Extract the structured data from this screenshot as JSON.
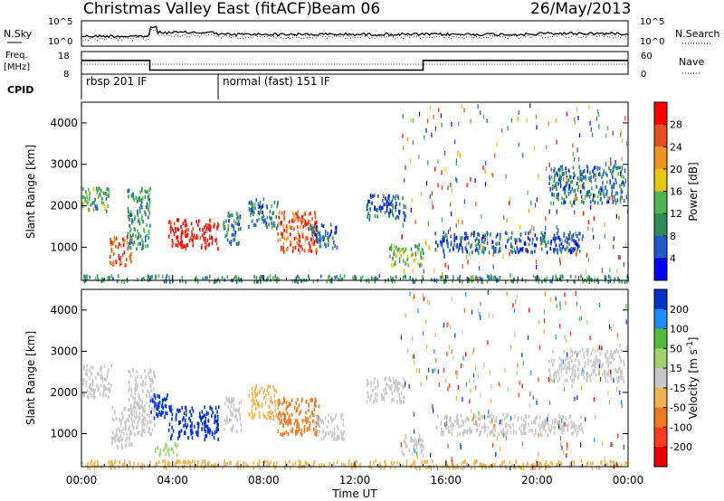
{
  "header": {
    "title": "Christmas Valley East (fitACF)",
    "beam": "Beam 06",
    "date": "26/May/2013"
  },
  "status_panels": {
    "nsky_label": "N.Sky",
    "nsky_ticks": [
      "10^5",
      "10^0"
    ],
    "nsearch_label": "N.Search",
    "nsearch_ticks": [
      "10^5",
      "10^0"
    ],
    "freq_label": "Freq.",
    "freq_unit": "[MHz]",
    "freq_ticks": [
      "18",
      "8"
    ],
    "nave_label": "Nave",
    "nave_ticks": [
      "60",
      "0"
    ],
    "cpid_label": "CPID",
    "cpid_segments": [
      {
        "label": "rbsp 201 IF",
        "start_hour": 0
      },
      {
        "label": "normal (fast) 151 IF",
        "start_hour": 6
      }
    ],
    "freq_trace": [
      {
        "hour": 0,
        "mhz": 14.5
      },
      {
        "hour": 3,
        "mhz": 14.5
      },
      {
        "hour": 3,
        "mhz": 10.2
      },
      {
        "hour": 15,
        "mhz": 10.2
      },
      {
        "hour": 15,
        "mhz": 14.5
      },
      {
        "hour": 24,
        "mhz": 14.5
      }
    ]
  },
  "chart_data": [
    {
      "type": "heatmap",
      "title": "",
      "ylabel": "Slant Range [km]",
      "xlabel": "",
      "xlim": [
        0,
        24
      ],
      "ylim": [
        200,
        4500
      ],
      "y_ticks": [
        "1000",
        "2000",
        "3000",
        "4000"
      ],
      "colorbar_label": "Power [dB]",
      "colorbar_ticks": [
        "4",
        "8",
        "12",
        "16",
        "20",
        "24",
        "28"
      ],
      "colorbar_range": [
        0,
        30
      ],
      "colorbar_colors": [
        "#0000ff",
        "#1e5ac8",
        "#2d8c5a",
        "#50b450",
        "#e6c814",
        "#f0961e",
        "#e6501e",
        "#ff0000"
      ],
      "echo_regions": [
        {
          "h0": 0.0,
          "h1": 1.2,
          "r0": 1900,
          "r1": 2500,
          "value": 12
        },
        {
          "h0": 1.2,
          "h1": 2.2,
          "r0": 600,
          "r1": 1300,
          "value": 24
        },
        {
          "h0": 2.0,
          "h1": 3.0,
          "r0": 1000,
          "r1": 2500,
          "value": 10
        },
        {
          "h0": 3.8,
          "h1": 6.0,
          "r0": 1000,
          "r1": 1700,
          "value": 28
        },
        {
          "h0": 6.2,
          "h1": 7.0,
          "r0": 1100,
          "r1": 1900,
          "value": 8
        },
        {
          "h0": 7.3,
          "h1": 8.6,
          "r0": 1500,
          "r1": 2200,
          "value": 8
        },
        {
          "h0": 8.6,
          "h1": 10.3,
          "r0": 900,
          "r1": 1900,
          "value": 24
        },
        {
          "h0": 10.0,
          "h1": 11.2,
          "r0": 1000,
          "r1": 1600,
          "value": 6
        },
        {
          "h0": 12.5,
          "h1": 14.2,
          "r0": 1700,
          "r1": 2300,
          "value": 6
        },
        {
          "h0": 13.5,
          "h1": 15.0,
          "r0": 600,
          "r1": 1100,
          "value": 14
        },
        {
          "h0": 15.5,
          "h1": 22.0,
          "r0": 900,
          "r1": 1400,
          "value": 6
        },
        {
          "h0": 20.5,
          "h1": 23.8,
          "r0": 2100,
          "r1": 3000,
          "value": 8
        },
        {
          "h0": 0.0,
          "h1": 24.0,
          "r0": 200,
          "r1": 350,
          "value": 10
        }
      ]
    },
    {
      "type": "heatmap",
      "title": "",
      "ylabel": "Slant Range [km]",
      "xlabel": "Time UT",
      "xlim": [
        0,
        24
      ],
      "ylim": [
        200,
        4500
      ],
      "x_ticks": [
        "00:00",
        "04:00",
        "08:00",
        "12:00",
        "16:00",
        "20:00",
        "00:00"
      ],
      "y_ticks": [
        "1000",
        "2000",
        "3000",
        "4000"
      ],
      "colorbar_label": "Velocity [m s^-1]",
      "colorbar_ticks": [
        "200",
        "100",
        "50",
        "15",
        "-15",
        "-50",
        "-100",
        "-200"
      ],
      "colorbar_range": [
        -250,
        250
      ],
      "colorbar_colors": [
        "#0032c8",
        "#1e8cff",
        "#50be3c",
        "#a0d26e",
        "#c8c8c8",
        "#f0b450",
        "#f0781e",
        "#ff3c1e",
        "#e60000"
      ],
      "echo_regions": [
        {
          "h0": 0.0,
          "h1": 1.3,
          "r0": 1900,
          "r1": 2700,
          "value": 0
        },
        {
          "h0": 1.3,
          "h1": 2.2,
          "r0": 700,
          "r1": 1700,
          "value": 0
        },
        {
          "h0": 2.0,
          "h1": 3.2,
          "r0": 1000,
          "r1": 2600,
          "value": 0
        },
        {
          "h0": 3.0,
          "h1": 3.8,
          "r0": 1400,
          "r1": 2100,
          "value": 200
        },
        {
          "h0": 3.8,
          "h1": 6.0,
          "r0": 900,
          "r1": 1700,
          "value": 200
        },
        {
          "h0": 3.2,
          "h1": 4.2,
          "r0": 500,
          "r1": 800,
          "value": 60
        },
        {
          "h0": 6.2,
          "h1": 7.0,
          "r0": 1100,
          "r1": 1900,
          "value": 0
        },
        {
          "h0": 7.3,
          "h1": 8.6,
          "r0": 1400,
          "r1": 2200,
          "value": -60
        },
        {
          "h0": 8.6,
          "h1": 10.4,
          "r0": 1000,
          "r1": 1900,
          "value": -90
        },
        {
          "h0": 10.2,
          "h1": 11.5,
          "r0": 900,
          "r1": 1500,
          "value": 0
        },
        {
          "h0": 12.5,
          "h1": 14.2,
          "r0": 1800,
          "r1": 2400,
          "value": 0
        },
        {
          "h0": 14.0,
          "h1": 15.0,
          "r0": 500,
          "r1": 1000,
          "value": 0
        },
        {
          "h0": 15.5,
          "h1": 22.0,
          "r0": 1000,
          "r1": 1500,
          "value": 0
        },
        {
          "h0": 20.5,
          "h1": 23.8,
          "r0": 2300,
          "r1": 3100,
          "value": 0
        },
        {
          "h0": 0.0,
          "h1": 24.0,
          "r0": 200,
          "r1": 380,
          "value": -40
        }
      ]
    }
  ]
}
